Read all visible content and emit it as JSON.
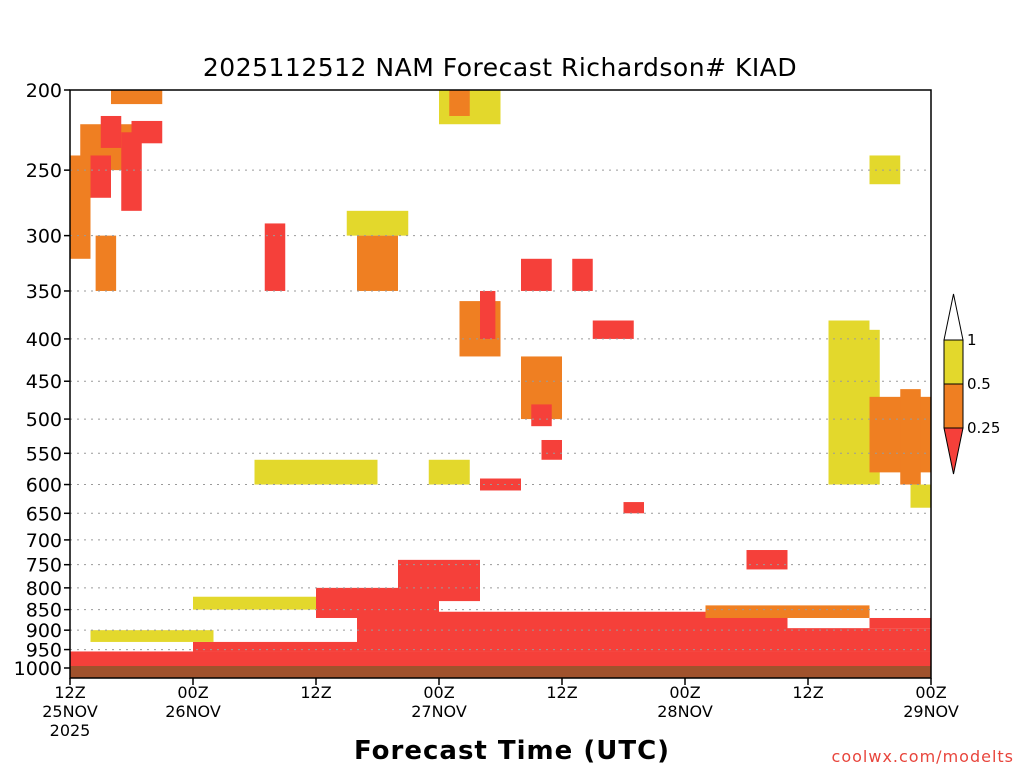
{
  "chart_data": {
    "type": "heatmap",
    "title": "2025112512 NAM Forecast Richardson# KIAD",
    "xlabel": "Forecast Time (UTC)",
    "ylabel": "",
    "credit": "coolwx.com/modelts",
    "x_range_hours": [
      0,
      84
    ],
    "y_range_hpa": [
      1000,
      200
    ],
    "y_ticks": [
      "200",
      "250",
      "300",
      "350",
      "400",
      "450",
      "500",
      "550",
      "600",
      "650",
      "700",
      "750",
      "800",
      "850",
      "900",
      "950",
      "1000"
    ],
    "x_ticks": [
      {
        "hour": 0,
        "line1": "12Z",
        "line2": "25NOV",
        "line3": "2025"
      },
      {
        "hour": 12,
        "line1": "00Z",
        "line2": "26NOV",
        "line3": ""
      },
      {
        "hour": 24,
        "line1": "12Z",
        "line2": "",
        "line3": ""
      },
      {
        "hour": 36,
        "line1": "00Z",
        "line2": "27NOV",
        "line3": ""
      },
      {
        "hour": 48,
        "line1": "12Z",
        "line2": "",
        "line3": ""
      },
      {
        "hour": 60,
        "line1": "00Z",
        "line2": "28NOV",
        "line3": ""
      },
      {
        "hour": 72,
        "line1": "12Z",
        "line2": "",
        "line3": ""
      },
      {
        "hour": 84,
        "line1": "00Z",
        "line2": "29NOV",
        "line3": ""
      }
    ],
    "colorbar": {
      "levels": [
        "1",
        "0.5",
        "0.25"
      ],
      "bins": [
        {
          "name": "0.5-1",
          "color": "#e3d82c"
        },
        {
          "name": "0.25-0.5",
          "color": "#ef7f22"
        },
        {
          "name": "<0.25",
          "color": "#f5403a"
        }
      ]
    },
    "ground_color": "#a0522d",
    "regions": [
      {
        "bin": "<0.25",
        "h0": 0,
        "h1": 84,
        "p0": 1000,
        "p1": 955
      },
      {
        "bin": "<0.25",
        "h0": 28,
        "h1": 70,
        "p0": 955,
        "p1": 855
      },
      {
        "bin": "<0.25",
        "h0": 12,
        "h1": 28,
        "p0": 955,
        "p1": 930
      },
      {
        "bin": "<0.25",
        "h0": 70,
        "h1": 84,
        "p0": 955,
        "p1": 895
      },
      {
        "bin": "<0.25",
        "h0": 78,
        "h1": 84,
        "p0": 895,
        "p1": 870
      },
      {
        "bin": "<0.25",
        "h0": 24,
        "h1": 36,
        "p0": 870,
        "p1": 800
      },
      {
        "bin": "<0.25",
        "h0": 32,
        "h1": 40,
        "p0": 830,
        "p1": 740
      },
      {
        "bin": "0.25-0.5",
        "h0": 62,
        "h1": 78,
        "p0": 870,
        "p1": 840
      },
      {
        "bin": "0.5-1",
        "h0": 2,
        "h1": 14,
        "p0": 930,
        "p1": 900
      },
      {
        "bin": "0.5-1",
        "h0": 12,
        "h1": 24,
        "p0": 850,
        "p1": 820
      },
      {
        "bin": "0.25-0.5",
        "h0": 1,
        "h1": 6,
        "p0": 250,
        "p1": 220
      },
      {
        "bin": "<0.25",
        "h0": 3,
        "h1": 5,
        "p0": 235,
        "p1": 215
      },
      {
        "bin": "0.25-0.5",
        "h0": 0,
        "h1": 2,
        "p0": 320,
        "p1": 240
      },
      {
        "bin": "<0.25",
        "h0": 2,
        "h1": 4,
        "p0": 270,
        "p1": 240
      },
      {
        "bin": "0.25-0.5",
        "h0": 2.5,
        "h1": 4.5,
        "p0": 350,
        "p1": 300
      },
      {
        "bin": "<0.25",
        "h0": 5,
        "h1": 7,
        "p0": 280,
        "p1": 225
      },
      {
        "bin": "0.25-0.5",
        "h0": 4,
        "h1": 9,
        "p0": 208,
        "p1": 200
      },
      {
        "bin": "<0.25",
        "h0": 6,
        "h1": 9,
        "p0": 232,
        "p1": 218
      },
      {
        "bin": "0.5-1",
        "h0": 27,
        "h1": 33,
        "p0": 300,
        "p1": 280
      },
      {
        "bin": "0.25-0.5",
        "h0": 28,
        "h1": 32,
        "p0": 350,
        "p1": 300
      },
      {
        "bin": "<0.25",
        "h0": 19,
        "h1": 21,
        "p0": 350,
        "p1": 290
      },
      {
        "bin": "0.25-0.5",
        "h0": 38,
        "h1": 42,
        "p0": 420,
        "p1": 360
      },
      {
        "bin": "<0.25",
        "h0": 40,
        "h1": 41.5,
        "p0": 400,
        "p1": 350
      },
      {
        "bin": "<0.25",
        "h0": 44,
        "h1": 47,
        "p0": 350,
        "p1": 320
      },
      {
        "bin": "0.25-0.5",
        "h0": 44,
        "h1": 48,
        "p0": 500,
        "p1": 420
      },
      {
        "bin": "<0.25",
        "h0": 45,
        "h1": 47,
        "p0": 510,
        "p1": 480
      },
      {
        "bin": "<0.25",
        "h0": 46,
        "h1": 48,
        "p0": 560,
        "p1": 530
      },
      {
        "bin": "<0.25",
        "h0": 40,
        "h1": 44,
        "p0": 610,
        "p1": 590
      },
      {
        "bin": "0.5-1",
        "h0": 35,
        "h1": 39,
        "p0": 600,
        "p1": 560
      },
      {
        "bin": "<0.25",
        "h0": 49,
        "h1": 51,
        "p0": 350,
        "p1": 320
      },
      {
        "bin": "<0.25",
        "h0": 51,
        "h1": 55,
        "p0": 400,
        "p1": 380
      },
      {
        "bin": "<0.25",
        "h0": 54,
        "h1": 56,
        "p0": 650,
        "p1": 630
      },
      {
        "bin": "0.5-1",
        "h0": 74,
        "h1": 79,
        "p0": 600,
        "p1": 390
      },
      {
        "bin": "0.25-0.5",
        "h0": 78,
        "h1": 84,
        "p0": 580,
        "p1": 470
      },
      {
        "bin": "0.25-0.5",
        "h0": 81,
        "h1": 83,
        "p0": 600,
        "p1": 460
      },
      {
        "bin": "0.5-1",
        "h0": 82,
        "h1": 84,
        "p0": 640,
        "p1": 600
      },
      {
        "bin": "0.5-1",
        "h0": 74,
        "h1": 78,
        "p0": 420,
        "p1": 380
      },
      {
        "bin": "0.5-1",
        "h0": 78,
        "h1": 81,
        "p0": 260,
        "p1": 240
      },
      {
        "bin": "<0.25",
        "h0": 66,
        "h1": 70,
        "p0": 760,
        "p1": 720
      },
      {
        "bin": "0.5-1",
        "h0": 36,
        "h1": 42,
        "p0": 220,
        "p1": 200
      },
      {
        "bin": "0.25-0.5",
        "h0": 37,
        "h1": 39,
        "p0": 215,
        "p1": 200
      },
      {
        "bin": "0.5-1",
        "h0": 18,
        "h1": 30,
        "p0": 600,
        "p1": 560
      }
    ]
  }
}
